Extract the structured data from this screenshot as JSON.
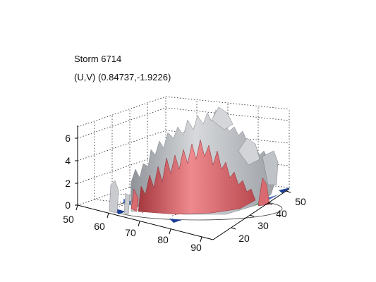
{
  "figure": {
    "title": "Storm 6714",
    "subtitle": "(U,V) (0.84737,-1.9226)",
    "z_ticks": [
      "0",
      "2",
      "4",
      "6"
    ],
    "x_ticks": [
      "50",
      "60",
      "70",
      "80",
      "90"
    ],
    "y_ticks": [
      "20",
      "30",
      "40",
      "50"
    ],
    "colors": {
      "background": "#ffffff",
      "outer_surface": "#b9bcc0",
      "inner_core": "#d96a6f",
      "base_blue": "#2d56b3",
      "base_green": "#5fb06a",
      "axis": "#000000",
      "grid": "#222222"
    }
  }
}
